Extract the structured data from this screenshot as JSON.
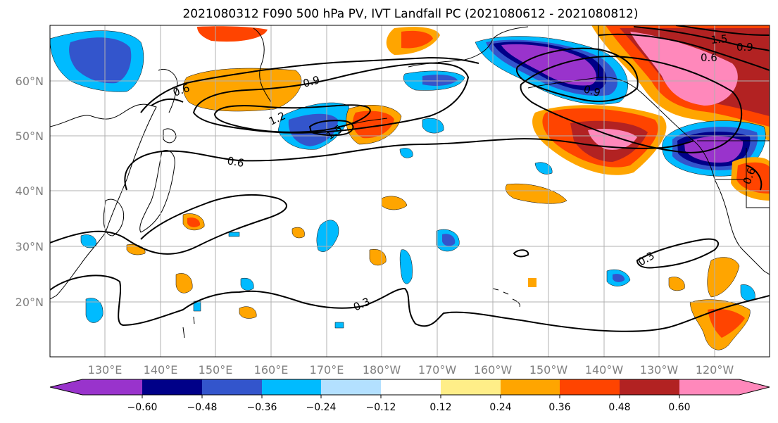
{
  "title": "2021080312 F090 500 hPa PV, IVT Landfall PC (2021080612 - 2021080812)",
  "map": {
    "lat_labels": [
      "60°N",
      "50°N",
      "40°N",
      "30°N",
      "20°N"
    ],
    "lon_labels": [
      "130°E",
      "140°E",
      "150°E",
      "160°E",
      "170°E",
      "180°W",
      "170°W",
      "160°W",
      "150°W",
      "140°W",
      "130°W",
      "120°W"
    ],
    "contour_labels": [
      "0.6",
      "0.9",
      "1.2",
      "1.5",
      "0.6",
      "0.9",
      "1.5",
      "0.6",
      "0.9",
      "0.6",
      "0.3",
      "0.3"
    ]
  },
  "colorbar": {
    "ticks": [
      "−0.60",
      "−0.48",
      "−0.36",
      "−0.24",
      "−0.12",
      "0.12",
      "0.24",
      "0.36",
      "0.48",
      "0.60"
    ],
    "colors": {
      "lt_-0.60": "#9933cc",
      "-0.60_-0.48": "#000088",
      "-0.48_-0.36": "#3355cc",
      "-0.36_-0.24": "#00bbff",
      "-0.24_-0.12": "#b3e0ff",
      "-0.12_0.12": "#ffffff",
      "0.12_0.24": "#ffee88",
      "0.24_0.36": "#ffa500",
      "0.36_0.48": "#ff4400",
      "0.48_0.60": "#b22222",
      "gt_0.60": "#ff88bb"
    }
  }
}
